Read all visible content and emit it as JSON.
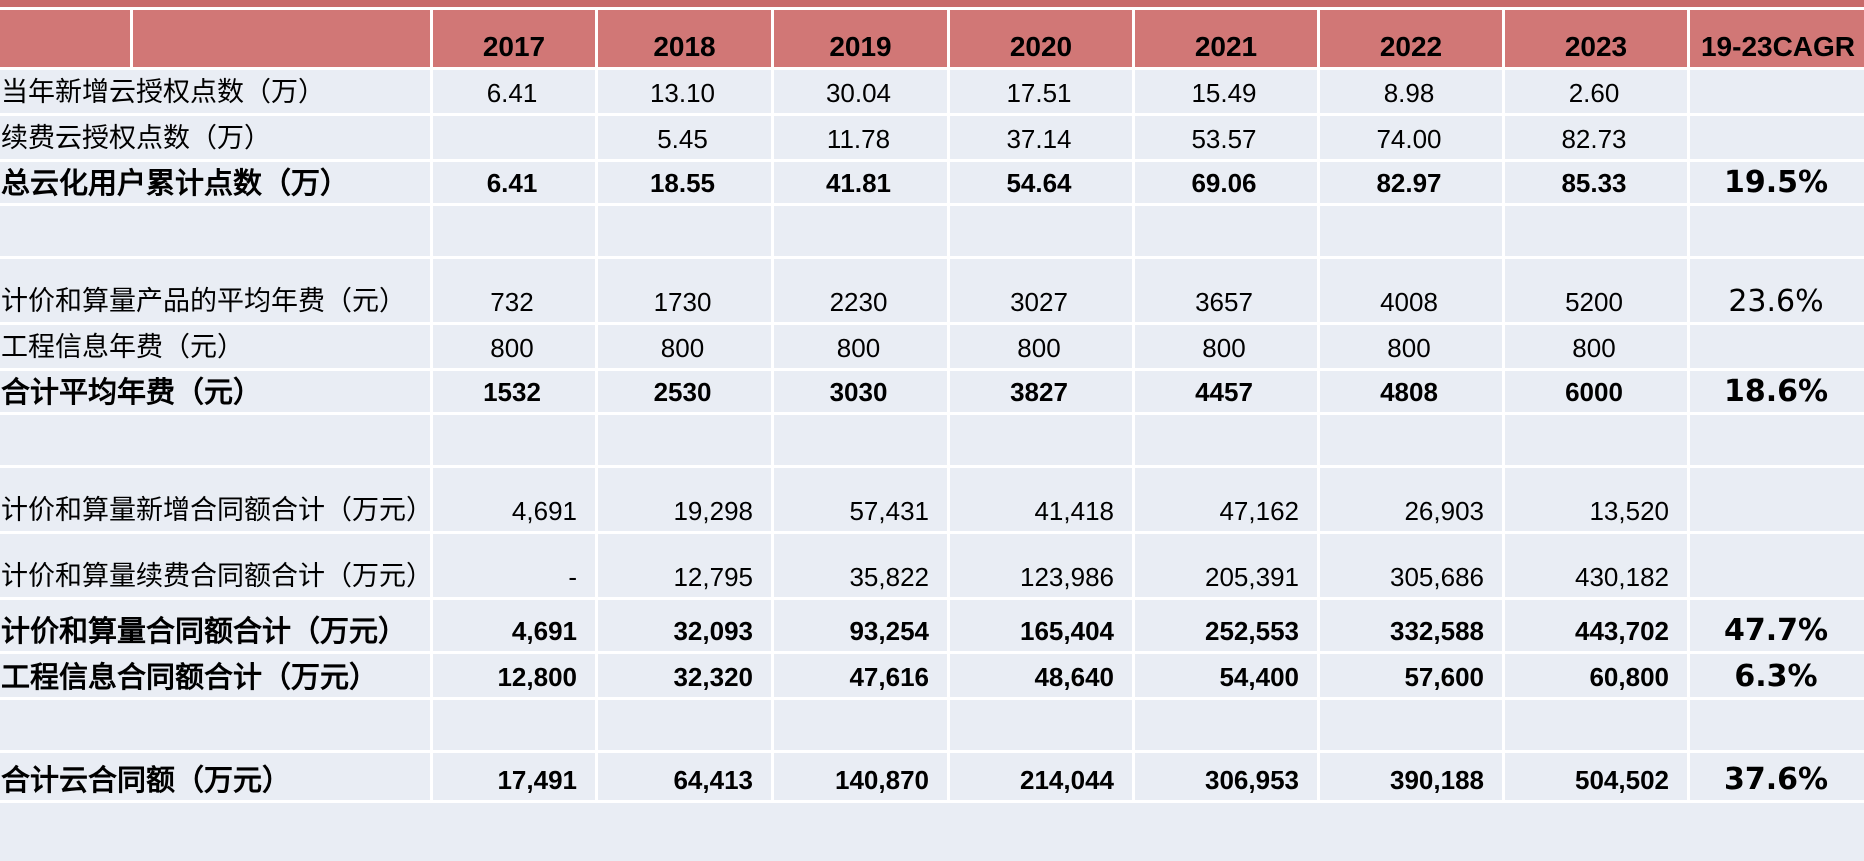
{
  "header": {
    "label_left": "",
    "label_right": "",
    "years": [
      "2017",
      "2018",
      "2019",
      "2020",
      "2021",
      "2022",
      "2023"
    ],
    "cagr": "19-23CAGR"
  },
  "rows": [
    {
      "label": "当年新增云授权点数（万）",
      "values": [
        "6.41",
        "13.10",
        "30.04",
        "17.51",
        "15.49",
        "8.98",
        "2.60"
      ],
      "cagr": ""
    },
    {
      "label": "续费云授权点数（万）",
      "values": [
        "",
        "5.45",
        "11.78",
        "37.14",
        "53.57",
        "74.00",
        "82.73"
      ],
      "cagr": ""
    },
    {
      "label": "总云化用户累计点数（万）",
      "values": [
        "6.41",
        "18.55",
        "41.81",
        "54.64",
        "69.06",
        "82.97",
        "85.33"
      ],
      "cagr": "19.5%"
    },
    {
      "label": "计价和算量产品的平均年费（元）",
      "values": [
        "732",
        "1730",
        "2230",
        "3027",
        "3657",
        "4008",
        "5200"
      ],
      "cagr": "23.6%"
    },
    {
      "label": "工程信息年费（元）",
      "values": [
        "800",
        "800",
        "800",
        "800",
        "800",
        "800",
        "800"
      ],
      "cagr": ""
    },
    {
      "label": "合计平均年费（元）",
      "values": [
        "1532",
        "2530",
        "3030",
        "3827",
        "4457",
        "4808",
        "6000"
      ],
      "cagr": "18.6%"
    },
    {
      "label": "计价和算量新增合同额合计（万元）",
      "values": [
        "4,691",
        "19,298",
        "57,431",
        "41,418",
        "47,162",
        "26,903",
        "13,520"
      ],
      "cagr": ""
    },
    {
      "label": "计价和算量续费合同额合计（万元）",
      "values": [
        "-",
        "12,795",
        "35,822",
        "123,986",
        "205,391",
        "305,686",
        "430,182"
      ],
      "cagr": ""
    },
    {
      "label": "计价和算量合同额合计（万元）",
      "values": [
        "4,691",
        "32,093",
        "93,254",
        "165,404",
        "252,553",
        "332,588",
        "443,702"
      ],
      "cagr": "47.7%"
    },
    {
      "label": "工程信息合同额合计（万元）",
      "values": [
        "12,800",
        "32,320",
        "47,616",
        "48,640",
        "54,400",
        "57,600",
        "60,800"
      ],
      "cagr": "6.3%"
    },
    {
      "label": "合计云合同额（万元）",
      "values": [
        "17,491",
        "64,413",
        "140,870",
        "214,044",
        "306,953",
        "390,188",
        "504,502"
      ],
      "cagr": "37.6%"
    }
  ]
}
